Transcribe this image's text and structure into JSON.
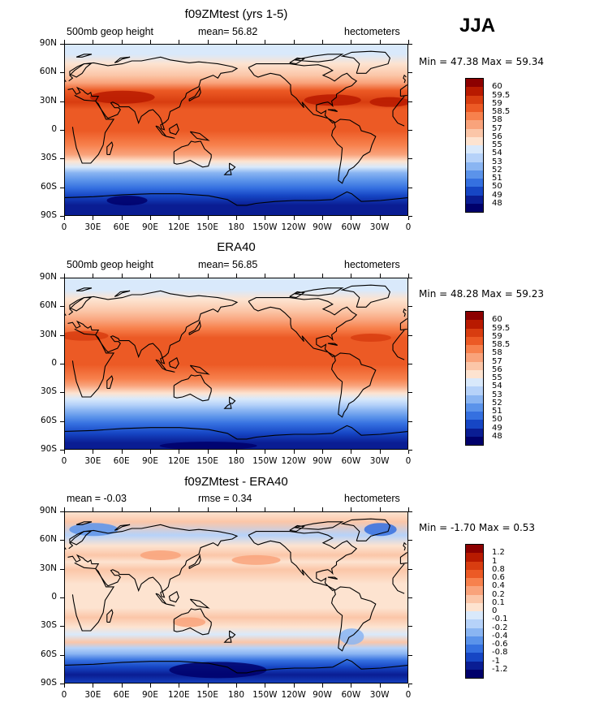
{
  "season": "JJA",
  "panels": [
    {
      "title": "f09ZMtest (yrs 1-5)",
      "left_label": "500mb geop height",
      "center_label": "mean=   56.82",
      "units": "hectometers",
      "minmax": "Min =   47.38  Max =   59.34",
      "colorbar_labels": [
        "60",
        "59.5",
        "59",
        "58.5",
        "58",
        "57",
        "56",
        "55",
        "54",
        "53",
        "52",
        "51",
        "50",
        "49",
        "48"
      ],
      "colorbar_colors": [
        "#8c0000",
        "#b81a00",
        "#d83d10",
        "#ec5a25",
        "#f7814d",
        "#f9a37b",
        "#fbc6a8",
        "#fde3d0",
        "#d9e9fb",
        "#b6d2f9",
        "#8ab5f2",
        "#5b93ea",
        "#3570e0",
        "#1646c4",
        "#0a1d93",
        "#00006b"
      ],
      "bands": [
        {
          "lat": 90,
          "color": "#d9e9fb"
        },
        {
          "lat": 80,
          "color": "#d9e9fb"
        },
        {
          "lat": 70,
          "color": "#fde3d0"
        },
        {
          "lat": 58,
          "color": "#fbc6a8"
        },
        {
          "lat": 50,
          "color": "#f9a37b"
        },
        {
          "lat": 42,
          "color": "#ec5a25"
        },
        {
          "lat": 30,
          "color": "#d83d10"
        },
        {
          "lat": 22,
          "color": "#ec5a25"
        },
        {
          "lat": 0,
          "color": "#ec5a25"
        },
        {
          "lat": -15,
          "color": "#f7814d"
        },
        {
          "lat": -25,
          "color": "#f9a37b"
        },
        {
          "lat": -32,
          "color": "#fde3d0"
        },
        {
          "lat": -38,
          "color": "#d9e9fb"
        },
        {
          "lat": -44,
          "color": "#8ab5f2"
        },
        {
          "lat": -52,
          "color": "#5b93ea"
        },
        {
          "lat": -60,
          "color": "#3570e0"
        },
        {
          "lat": -68,
          "color": "#1646c4"
        },
        {
          "lat": -78,
          "color": "#0a1d93"
        },
        {
          "lat": -90,
          "color": "#0a1d93"
        }
      ]
    },
    {
      "title": "ERA40",
      "left_label": "500mb geop height",
      "center_label": "mean=   56.85",
      "units": "hectometers",
      "minmax": "Min =   48.28  Max =   59.23",
      "colorbar_labels": [
        "60",
        "59.5",
        "59",
        "58.5",
        "58",
        "57",
        "56",
        "55",
        "54",
        "53",
        "52",
        "51",
        "50",
        "49",
        "48"
      ],
      "colorbar_colors": [
        "#8c0000",
        "#b81a00",
        "#d83d10",
        "#ec5a25",
        "#f7814d",
        "#f9a37b",
        "#fbc6a8",
        "#fde3d0",
        "#d9e9fb",
        "#b6d2f9",
        "#8ab5f2",
        "#5b93ea",
        "#3570e0",
        "#1646c4",
        "#0a1d93",
        "#00006b"
      ],
      "bands": [
        {
          "lat": 90,
          "color": "#d9e9fb"
        },
        {
          "lat": 78,
          "color": "#d9e9fb"
        },
        {
          "lat": 68,
          "color": "#fde3d0"
        },
        {
          "lat": 56,
          "color": "#fbc6a8"
        },
        {
          "lat": 46,
          "color": "#f9a37b"
        },
        {
          "lat": 38,
          "color": "#f7814d"
        },
        {
          "lat": 28,
          "color": "#ec5a25"
        },
        {
          "lat": 0,
          "color": "#ec5a25"
        },
        {
          "lat": -15,
          "color": "#f7814d"
        },
        {
          "lat": -22,
          "color": "#f9a37b"
        },
        {
          "lat": -30,
          "color": "#fde3d0"
        },
        {
          "lat": -36,
          "color": "#d9e9fb"
        },
        {
          "lat": -42,
          "color": "#b6d2f9"
        },
        {
          "lat": -48,
          "color": "#8ab5f2"
        },
        {
          "lat": -55,
          "color": "#5b93ea"
        },
        {
          "lat": -62,
          "color": "#3570e0"
        },
        {
          "lat": -72,
          "color": "#1646c4"
        },
        {
          "lat": -82,
          "color": "#0a1d93"
        },
        {
          "lat": -90,
          "color": "#0a1d93"
        }
      ]
    },
    {
      "title": "f09ZMtest - ERA40",
      "left_label": "mean =   -0.03",
      "center_label": "rmse =     0.34",
      "units": "hectometers",
      "minmax": "Min =   -1.70  Max =    0.53",
      "colorbar_labels": [
        "1.2",
        "1",
        "0.8",
        "0.6",
        "0.4",
        "0.2",
        "0.1",
        "0",
        "-0.1",
        "-0.2",
        "-0.4",
        "-0.6",
        "-0.8",
        "-1",
        "-1.2"
      ],
      "colorbar_colors": [
        "#8c0000",
        "#b81a00",
        "#d83d10",
        "#ec5a25",
        "#f7814d",
        "#f9a37b",
        "#fbc6a8",
        "#fde3d0",
        "#d9e9fb",
        "#b6d2f9",
        "#8ab5f2",
        "#5b93ea",
        "#3570e0",
        "#1646c4",
        "#0a1d93",
        "#00006b"
      ],
      "bands": [
        {
          "lat": 90,
          "color": "#fde3d0"
        },
        {
          "lat": 80,
          "color": "#fbc6a8"
        },
        {
          "lat": 66,
          "color": "#b6d2f9"
        },
        {
          "lat": 55,
          "color": "#fde3d0"
        },
        {
          "lat": 45,
          "color": "#fbc6a8"
        },
        {
          "lat": 38,
          "color": "#fde3d0"
        },
        {
          "lat": 30,
          "color": "#fbc6a8"
        },
        {
          "lat": 15,
          "color": "#fde3d0"
        },
        {
          "lat": -10,
          "color": "#fde3d0"
        },
        {
          "lat": -20,
          "color": "#fbc6a8"
        },
        {
          "lat": -30,
          "color": "#fde3d0"
        },
        {
          "lat": -38,
          "color": "#d9e9fb"
        },
        {
          "lat": -46,
          "color": "#fbc6a8"
        },
        {
          "lat": -52,
          "color": "#b6d2f9"
        },
        {
          "lat": -58,
          "color": "#8ab5f2"
        },
        {
          "lat": -65,
          "color": "#3570e0"
        },
        {
          "lat": -72,
          "color": "#1646c4"
        },
        {
          "lat": -80,
          "color": "#0a1d93"
        },
        {
          "lat": -90,
          "color": "#1646c4"
        }
      ]
    }
  ],
  "lat_labels": [
    "90N",
    "60N",
    "30N",
    "0",
    "30S",
    "60S",
    "90S"
  ],
  "lon_labels": [
    "0",
    "30E",
    "60E",
    "90E",
    "120E",
    "150E",
    "180",
    "150W",
    "120W",
    "90W",
    "60W",
    "30W",
    "0"
  ]
}
